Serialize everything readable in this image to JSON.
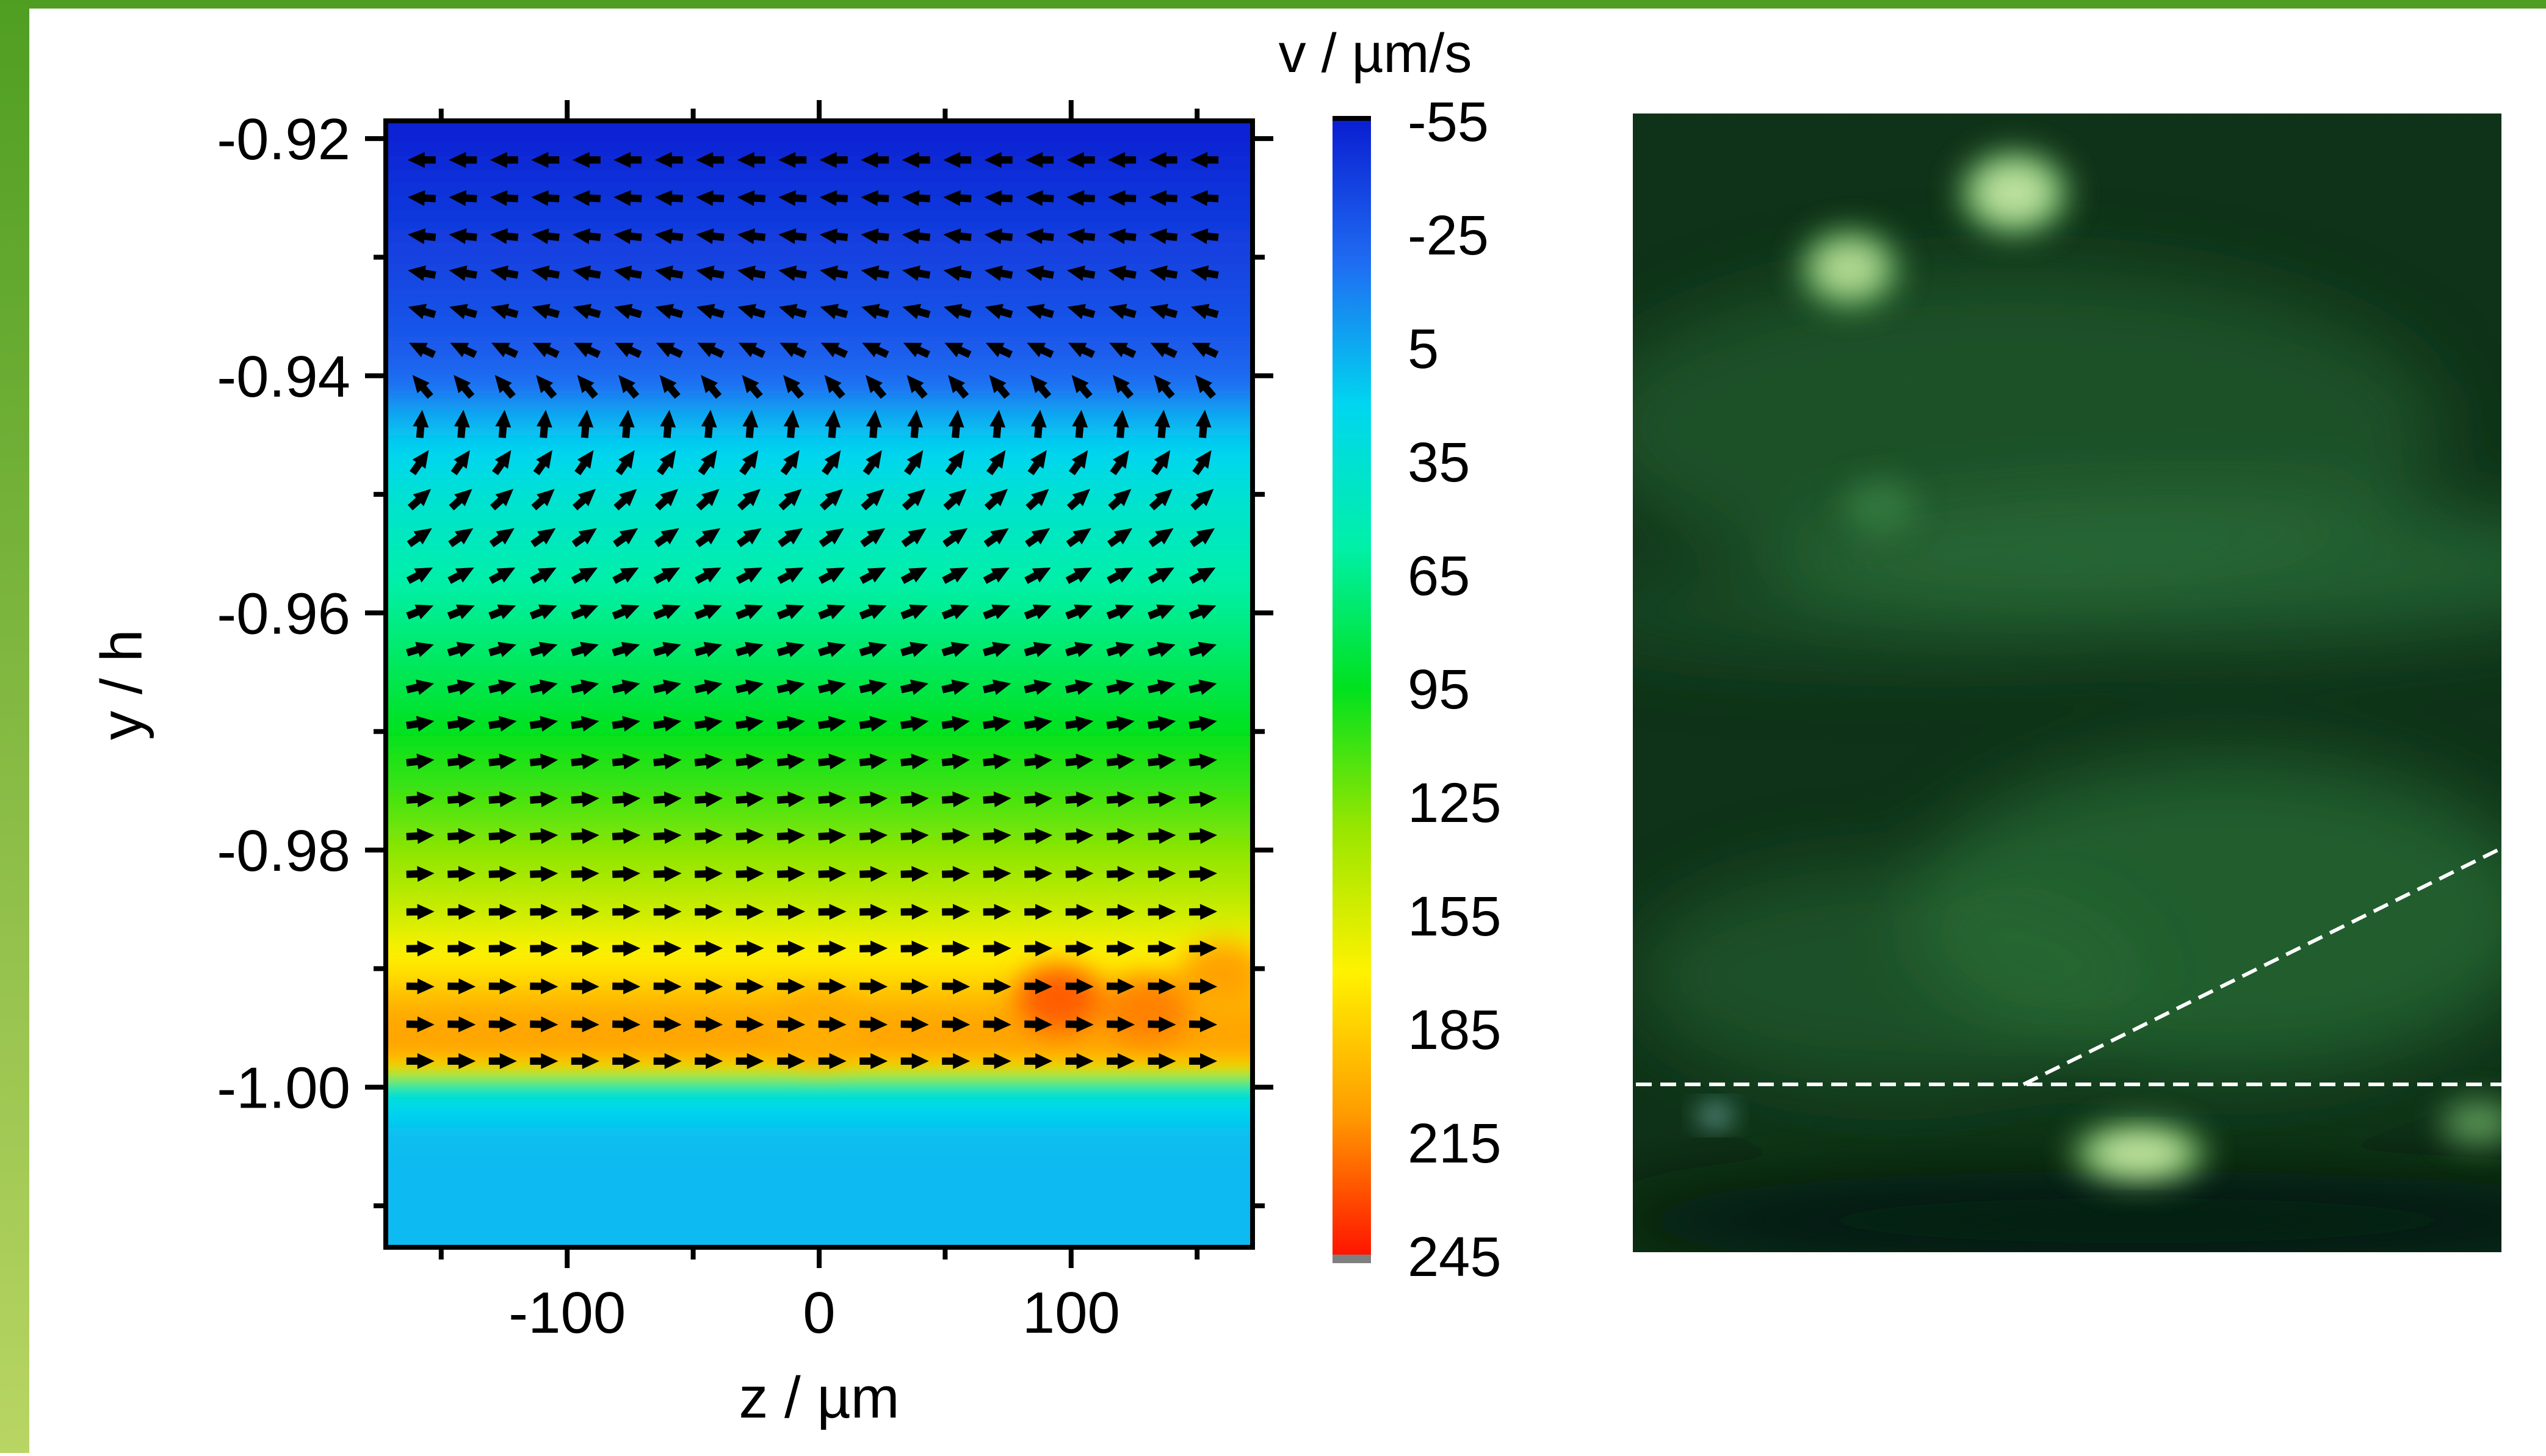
{
  "colors": {
    "frame_green_top": "#4f9e22",
    "frame_green_bottom": "#b9d563",
    "arrow": "#000000",
    "colorbar_stops": [
      "#0a1fd2",
      "#1f6cf2",
      "#00d6f0",
      "#00f0a8",
      "#00e11e",
      "#9ae600",
      "#fff200",
      "#ff9c00",
      "#ff1400"
    ],
    "colorbar_end_top": "#000000",
    "colorbar_end_bottom": "#7f7f7f",
    "micrograph_background": "#0c2a14",
    "dashed_line": "#ffffff"
  },
  "chart_data": [
    {
      "type": "heatmap",
      "subtype": "velocity field with vector arrows",
      "xlabel": "z / µm",
      "ylabel": "y / h",
      "xlim": [
        -172,
        172
      ],
      "ylim": [
        -1.0135,
        -0.9185
      ],
      "x_ticks": [
        -100,
        0,
        100
      ],
      "x_tick_labels": [
        "-100",
        "0",
        "100"
      ],
      "y_ticks": [
        -0.92,
        -0.94,
        -0.96,
        -0.98,
        -1.0
      ],
      "y_tick_labels": [
        "-0.92",
        "-0.94",
        "-0.96",
        "-0.98",
        "-1.00"
      ],
      "colorbar": {
        "title": "v / µm/s",
        "range": [
          -55,
          245
        ],
        "ticks": [
          -55,
          -25,
          5,
          35,
          65,
          95,
          125,
          155,
          185,
          215,
          245
        ],
        "tick_labels": [
          "-55",
          "-25",
          "5",
          "35",
          "65",
          "95",
          "125",
          "155",
          "185",
          "215",
          "245"
        ]
      },
      "velocity_profile": {
        "y": [
          -1.0135,
          -1.007,
          -1.0035,
          -1.0005,
          -0.998,
          -0.996,
          -0.9935,
          -0.9905,
          -0.987,
          -0.983,
          -0.979,
          -0.975,
          -0.97,
          -0.965,
          -0.96,
          -0.955,
          -0.95,
          -0.946,
          -0.9435,
          -0.941,
          -0.938,
          -0.934,
          -0.93,
          -0.925,
          -0.9185
        ],
        "v": [
          10,
          10,
          12,
          30,
          195,
          205,
          200,
          180,
          160,
          140,
          125,
          110,
          95,
          80,
          65,
          50,
          35,
          18,
          5,
          -15,
          -25,
          -32,
          -38,
          -45,
          -55
        ]
      },
      "hotspots": [
        {
          "z": 95,
          "y": -0.9925,
          "v": 225
        },
        {
          "z": 130,
          "y": -0.9935,
          "v": 215
        },
        {
          "z": 160,
          "y": -0.9905,
          "v": 205
        },
        {
          "z": 0,
          "y": -0.995,
          "v": 200
        }
      ],
      "arrow_grid": {
        "z_start": -158,
        "z_step": 16.35,
        "z_count": 20,
        "rows": [
          {
            "y": -0.9218,
            "angle_deg": 180
          },
          {
            "y": -0.925,
            "angle_deg": 183
          },
          {
            "y": -0.9282,
            "angle_deg": 186
          },
          {
            "y": -0.9313,
            "angle_deg": 190
          },
          {
            "y": -0.9345,
            "angle_deg": 196
          },
          {
            "y": -0.9377,
            "angle_deg": 205
          },
          {
            "y": -0.9408,
            "angle_deg": 230
          },
          {
            "y": -0.944,
            "angle_deg": 275
          },
          {
            "y": -0.9472,
            "angle_deg": 305
          },
          {
            "y": -0.9503,
            "angle_deg": 318
          },
          {
            "y": -0.9535,
            "angle_deg": 325
          },
          {
            "y": -0.9567,
            "angle_deg": 332
          },
          {
            "y": -0.9598,
            "angle_deg": 338
          },
          {
            "y": -0.963,
            "angle_deg": 343
          },
          {
            "y": -0.9662,
            "angle_deg": 347
          },
          {
            "y": -0.9693,
            "angle_deg": 351
          },
          {
            "y": -0.9725,
            "angle_deg": 354
          },
          {
            "y": -0.9757,
            "angle_deg": 356
          },
          {
            "y": -0.9788,
            "angle_deg": 357
          },
          {
            "y": -0.982,
            "angle_deg": 358
          },
          {
            "y": -0.9852,
            "angle_deg": 359
          },
          {
            "y": -0.9883,
            "angle_deg": 359
          },
          {
            "y": -0.9915,
            "angle_deg": 1
          },
          {
            "y": -0.9947,
            "angle_deg": 1
          },
          {
            "y": -0.9978,
            "angle_deg": 0
          }
        ]
      }
    }
  ]
}
